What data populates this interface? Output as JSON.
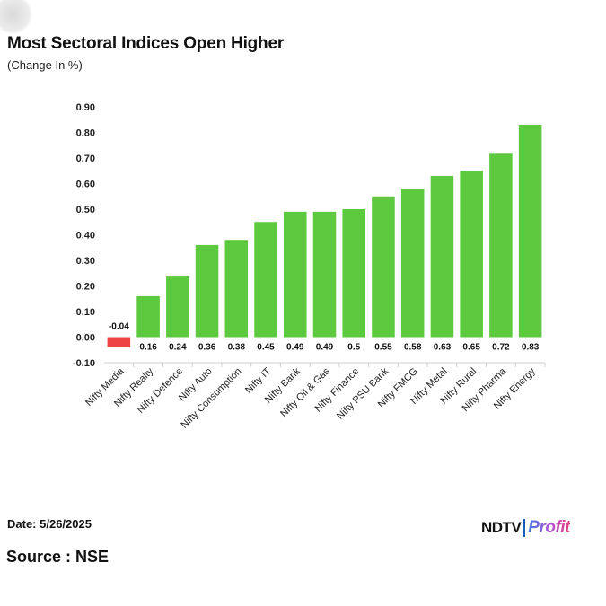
{
  "header": {
    "title": "Most Sectoral Indices Open Higher",
    "subtitle": "(Change In %)"
  },
  "footer": {
    "date": "Date: 5/26/2025",
    "source": "Source : NSE",
    "logo_ndtv": "NDTV",
    "logo_profit": "Profit"
  },
  "colors": {
    "positive": "#5cc93e",
    "negative": "#ef4444",
    "grid": "#e6e6e6"
  },
  "chart_data": {
    "type": "bar",
    "title": "Most Sectoral Indices Open Higher",
    "subtitle": "(Change In %)",
    "xlabel": "",
    "ylabel": "",
    "ylim": [
      -0.1,
      0.9
    ],
    "yticks": [
      "0.90",
      "0.80",
      "0.70",
      "0.60",
      "0.50",
      "0.40",
      "0.30",
      "0.20",
      "0.10",
      "0.00",
      "-0.10"
    ],
    "grid": false,
    "legend": "none",
    "categories": [
      "Nifty Media",
      "Nifty Realty",
      "Nifty Defence",
      "Nifty Auto",
      "Nifty Consumption",
      "Nifty IT",
      "Nifty Bank",
      "Nifty Oil & Gas",
      "Nifty Finance",
      "Nifty PSU Bank",
      "Nifty FMCG",
      "Nifty Metal",
      "Nifty Rural",
      "Nifty Pharma",
      "Nifty Energy"
    ],
    "values": [
      -0.04,
      0.16,
      0.24,
      0.36,
      0.38,
      0.45,
      0.49,
      0.49,
      0.5,
      0.55,
      0.58,
      0.63,
      0.65,
      0.72,
      0.83
    ],
    "value_labels": [
      "-0.04",
      "0.16",
      "0.24",
      "0.36",
      "0.38",
      "0.45",
      "0.49",
      "0.49",
      "0.5",
      "0.55",
      "0.58",
      "0.63",
      "0.65",
      "0.72",
      "0.83"
    ]
  }
}
